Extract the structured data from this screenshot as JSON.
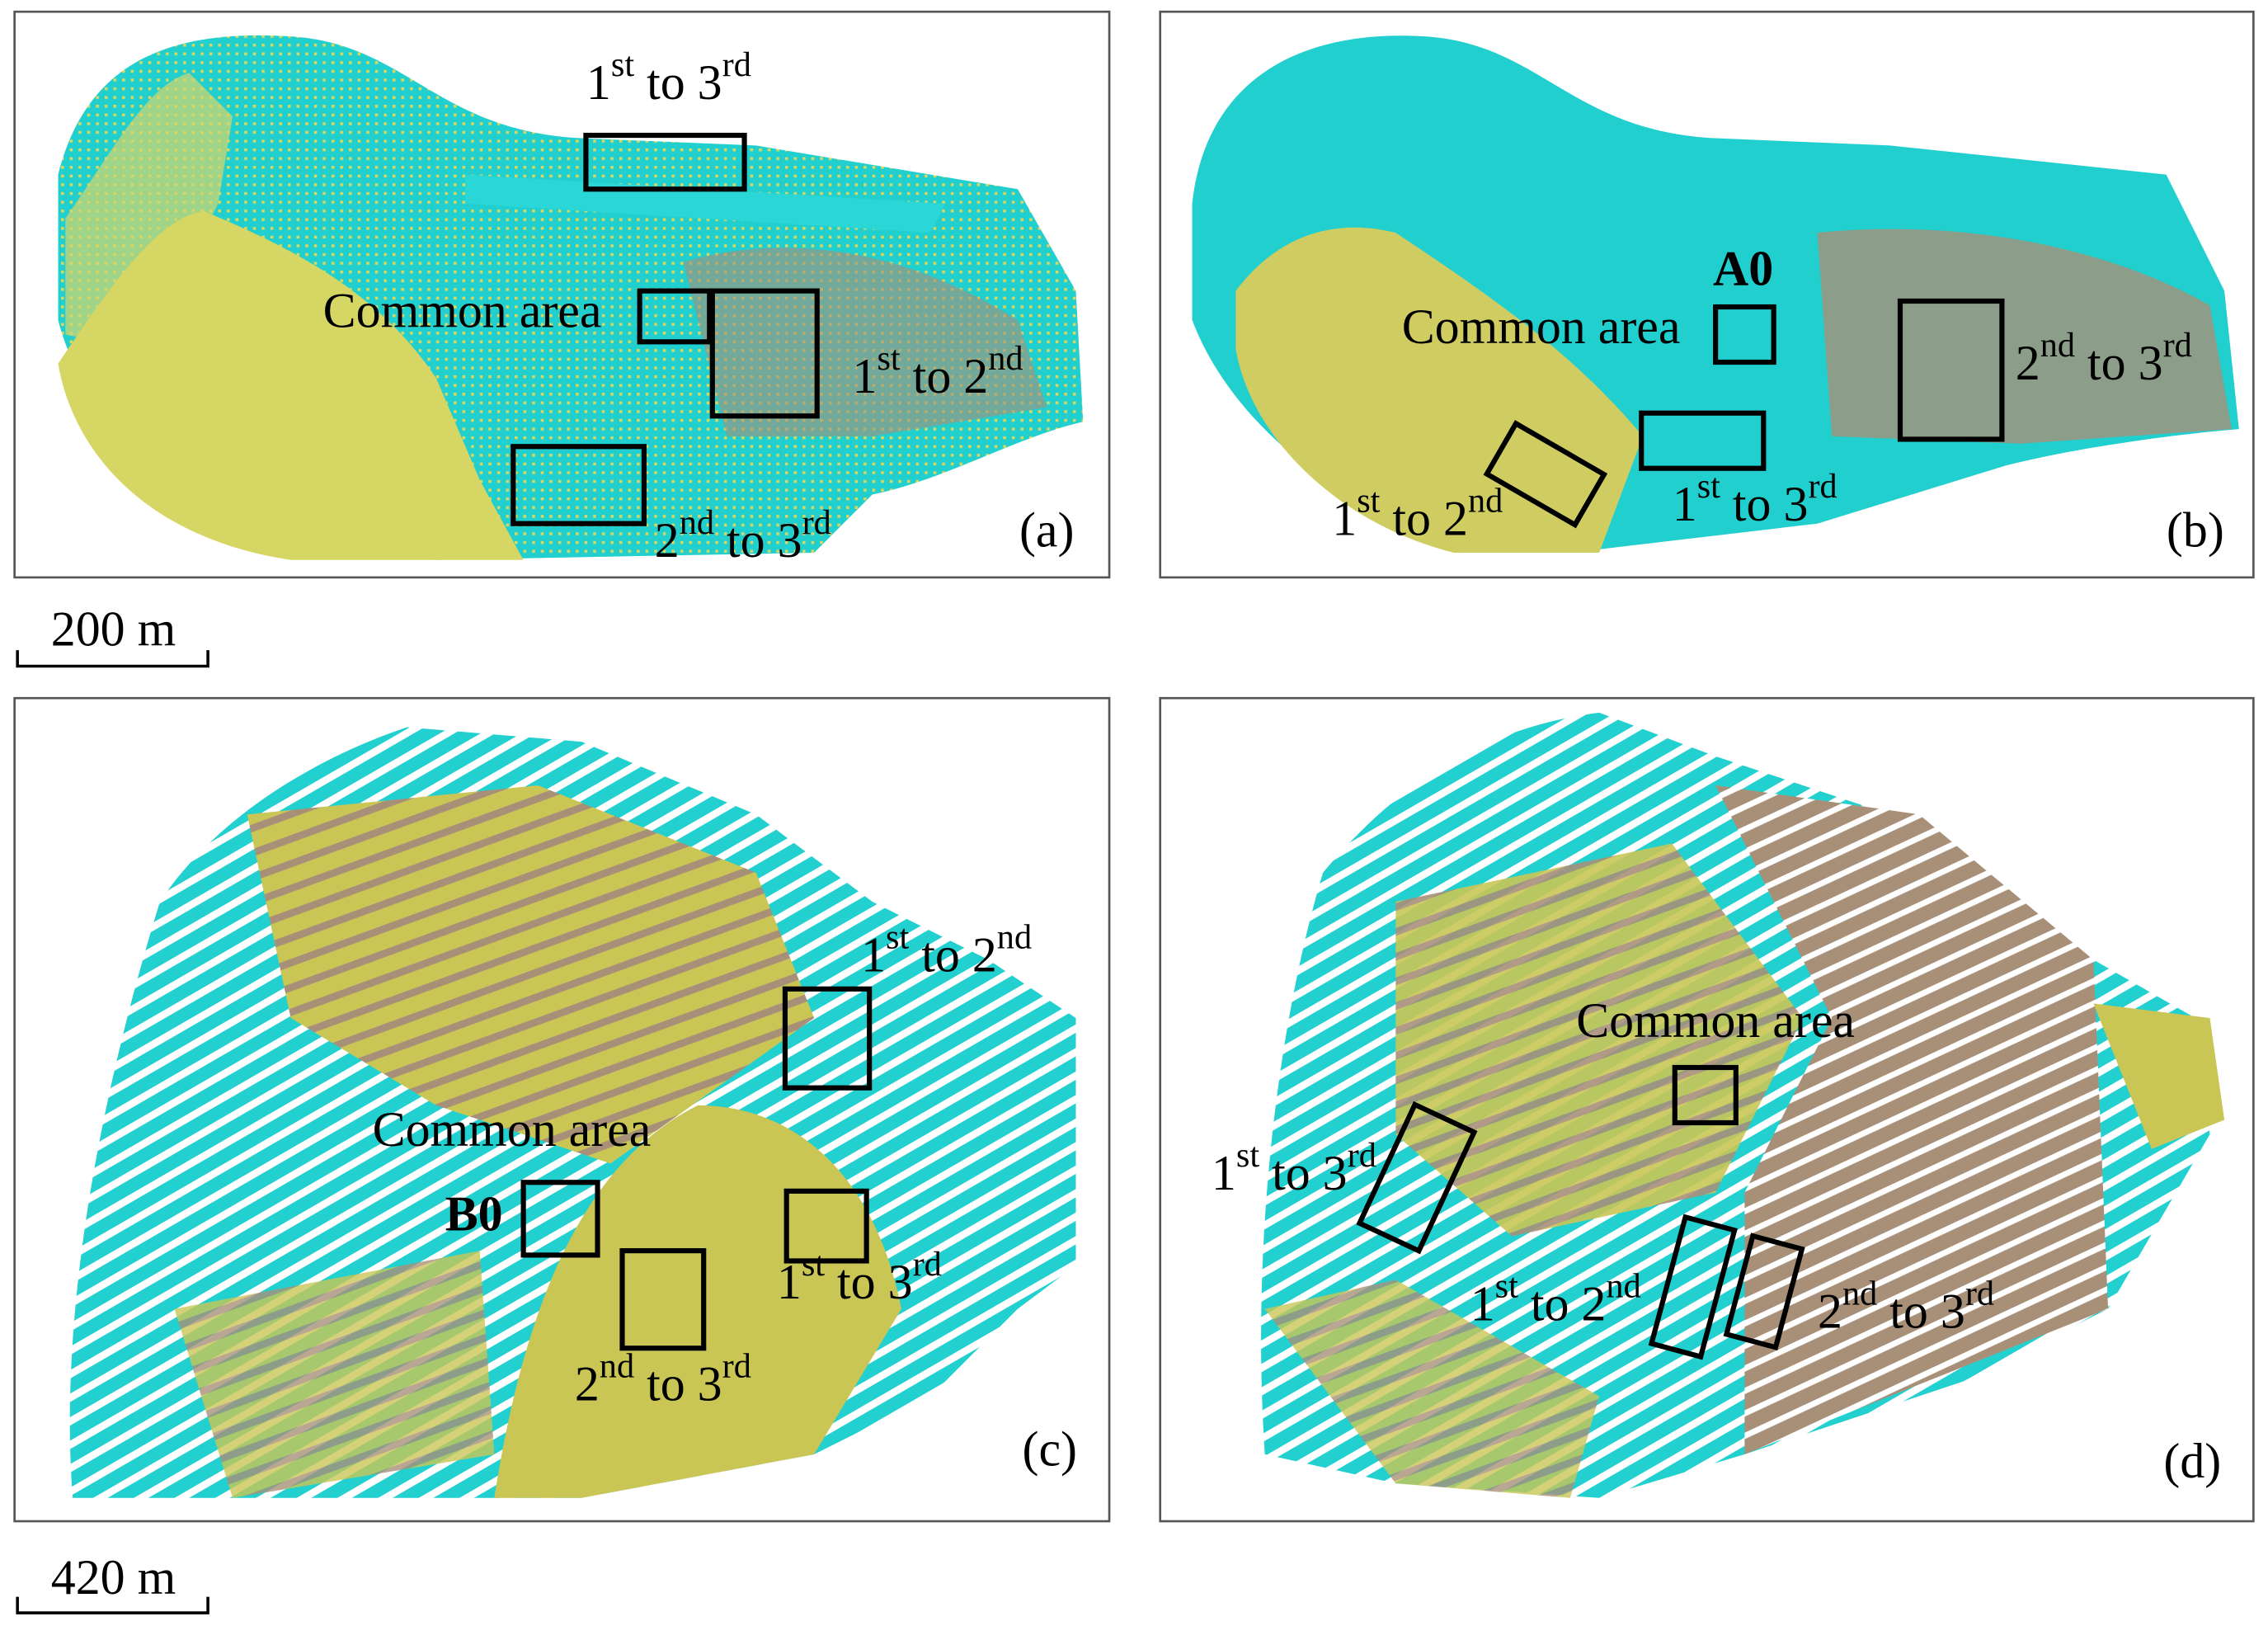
{
  "panels": [
    {
      "label": "(a)",
      "annotations": [
        {
          "text": [
            "1",
            "st",
            " to 3",
            "rd"
          ]
        },
        {
          "text": [
            "Common area"
          ]
        },
        {
          "text": [
            "1",
            "st",
            " to 2",
            "nd"
          ]
        },
        {
          "text": [
            "2",
            "nd",
            " to 3",
            "rd"
          ]
        }
      ]
    },
    {
      "label": "(b)",
      "annotations": [
        {
          "text": [
            "A0"
          ]
        },
        {
          "text": [
            "Common area"
          ]
        },
        {
          "text": [
            "2",
            "nd",
            " to 3",
            "rd"
          ]
        },
        {
          "text": [
            "1",
            "st",
            " to 3",
            "rd"
          ]
        },
        {
          "text": [
            "1",
            "st",
            " to 2",
            "nd"
          ]
        }
      ]
    },
    {
      "label": "(c)",
      "annotations": [
        {
          "text": [
            "1",
            "st",
            " to 2",
            "nd"
          ]
        },
        {
          "text": [
            "Common area"
          ]
        },
        {
          "text": [
            "B0"
          ]
        },
        {
          "text": [
            "1",
            "st",
            " to 3",
            "rd"
          ]
        },
        {
          "text": [
            "2",
            "nd",
            " to 3",
            "rd"
          ]
        }
      ]
    },
    {
      "label": "(d)",
      "annotations": [
        {
          "text": [
            "Common area"
          ]
        },
        {
          "text": [
            "1",
            "st",
            " to 3",
            "rd"
          ]
        },
        {
          "text": [
            "1",
            "st",
            " to 2",
            "nd"
          ]
        },
        {
          "text": [
            "2",
            "nd",
            " to 3",
            "rd"
          ]
        }
      ]
    }
  ],
  "scale_bars": [
    "200 m",
    "420 m"
  ]
}
